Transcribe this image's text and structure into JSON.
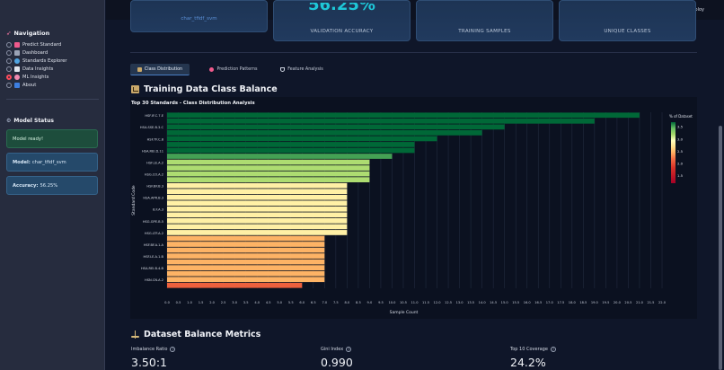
{
  "topbar": {
    "deploy": "Deploy"
  },
  "sidebar": {
    "title": "Navigation",
    "nav": [
      {
        "label": "Predict Standard",
        "icon": "target-icon",
        "color": "#f05a8c",
        "selected": false
      },
      {
        "label": "Dashboard",
        "icon": "dashboard-icon",
        "color": "#9aa3b6",
        "selected": false
      },
      {
        "label": "Standards Explorer",
        "icon": "magnifier-icon",
        "color": "#4fa3e0",
        "selected": false
      },
      {
        "label": "Data Insights",
        "icon": "chart-up-icon",
        "color": "#e0e4ec",
        "selected": false
      },
      {
        "label": "ML Insights",
        "icon": "brain-icon",
        "color": "#f28ab0",
        "selected": true
      },
      {
        "label": "About",
        "icon": "info-icon",
        "color": "#3d7ee0",
        "selected": false
      }
    ],
    "status_title": "Model Status",
    "status_ready": "Model ready!",
    "status_model_label": "Model:",
    "status_model_value": "char_tfidf_svm",
    "status_accuracy_label": "Accuracy:",
    "status_accuracy_value": "56.25%"
  },
  "metrics_top": {
    "model_name": "char_tfidf_svm",
    "cards": [
      {
        "label": "VALIDATION ACCURACY",
        "value": "56.25%"
      },
      {
        "label": "TRAINING SAMPLES",
        "value": ""
      },
      {
        "label": "UNIQUE CLASSES",
        "value": ""
      }
    ]
  },
  "tabs": [
    {
      "label": "Class Distribution",
      "icon": "chart-icon",
      "active": true
    },
    {
      "label": "Prediction Patterns",
      "icon": "target-icon",
      "active": false
    },
    {
      "label": "Feature Analysis",
      "icon": "flask-icon",
      "active": false
    }
  ],
  "section_title": "Training Data Class Balance",
  "chart_data": {
    "type": "bar",
    "orientation": "horizontal",
    "title": "Top 30 Standards - Class Distribution Analysis",
    "xlabel": "Sample Count",
    "ylabel": "Standard Code",
    "xlim": [
      0,
      22
    ],
    "x_ticks": [
      "0.0",
      "0.5",
      "1.0",
      "1.5",
      "2.0",
      "2.5",
      "3.0",
      "3.5",
      "4.0",
      "4.5",
      "5.0",
      "5.5",
      "6.0",
      "6.5",
      "7.0",
      "7.5",
      "8.0",
      "8.5",
      "9.0",
      "9.5",
      "10.0",
      "10.5",
      "11.0",
      "11.5",
      "12.0",
      "12.5",
      "13.0",
      "13.5",
      "14.0",
      "14.5",
      "15.0",
      "15.5",
      "16.0",
      "16.5",
      "17.0",
      "17.5",
      "18.0",
      "18.5",
      "19.0",
      "19.5",
      "20.0",
      "20.5",
      "21.0",
      "21.5",
      "22.0"
    ],
    "categories": [
      "HSF.IF.C.7.E",
      "",
      "HSA.SSE.B.3.C",
      "",
      "HSF.TF.C.8",
      "",
      "HSA.REI.D.11",
      "",
      "HSF.LE.A.2",
      "",
      "HSG.CO.A.2",
      "",
      "HSF.BF.B.3",
      "",
      "HSA.APR.B.3",
      "",
      "8.F.A.3",
      "",
      "HSG.GPE.B.5",
      "",
      "HSG.LTF.A.2",
      "",
      "HSF.BF.A.1.A",
      "",
      "HSF.LE.A.1.B",
      "",
      "HSA.REI.B.4.B",
      "",
      "HSN.CN.A.2",
      ""
    ],
    "values": [
      21,
      19,
      15,
      14,
      12,
      11,
      11,
      10,
      9,
      9,
      9,
      9,
      8,
      8,
      8,
      8,
      8,
      8,
      8,
      8,
      8,
      7,
      7,
      7,
      7,
      7,
      7,
      7,
      7,
      6
    ],
    "colorbar": {
      "label": "% of Dataset",
      "ticks": [
        "3.5",
        "3.0",
        "2.5",
        "2.0",
        "1.5"
      ],
      "range": [
        1.2,
        3.7
      ]
    },
    "grid": true
  },
  "balance": {
    "title": "Dataset Balance Metrics",
    "items": [
      {
        "label": "Imbalance Ratio",
        "value": "3.50:1"
      },
      {
        "label": "Gini Index",
        "value": "0.990"
      },
      {
        "label": "Top 10 Coverage",
        "value": "24.2%"
      }
    ]
  }
}
